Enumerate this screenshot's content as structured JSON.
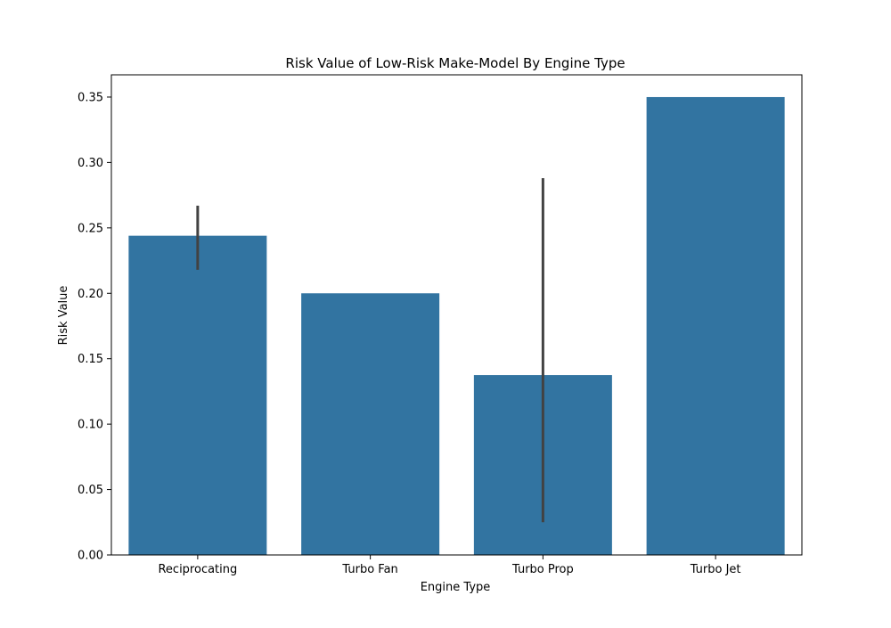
{
  "chart_data": {
    "type": "bar",
    "title": "Risk Value of Low-Risk Make-Model By Engine Type",
    "xlabel": "Engine Type",
    "ylabel": "Risk Value",
    "categories": [
      "Reciprocating",
      "Turbo Fan",
      "Turbo Prop",
      "Turbo Jet"
    ],
    "values": [
      0.244,
      0.2,
      0.1375,
      0.35
    ],
    "error_bars": [
      {
        "low": 0.218,
        "high": 0.267
      },
      null,
      {
        "low": 0.025,
        "high": 0.288
      },
      null
    ],
    "ylim": [
      0,
      0.367
    ],
    "yticks": [
      0.0,
      0.05,
      0.1,
      0.15,
      0.2,
      0.25,
      0.3,
      0.35
    ],
    "ytick_labels": [
      "0.00",
      "0.05",
      "0.10",
      "0.15",
      "0.20",
      "0.25",
      "0.30",
      "0.35"
    ],
    "grid": false,
    "bar_color": "#3274a1",
    "error_color": "#424242"
  }
}
